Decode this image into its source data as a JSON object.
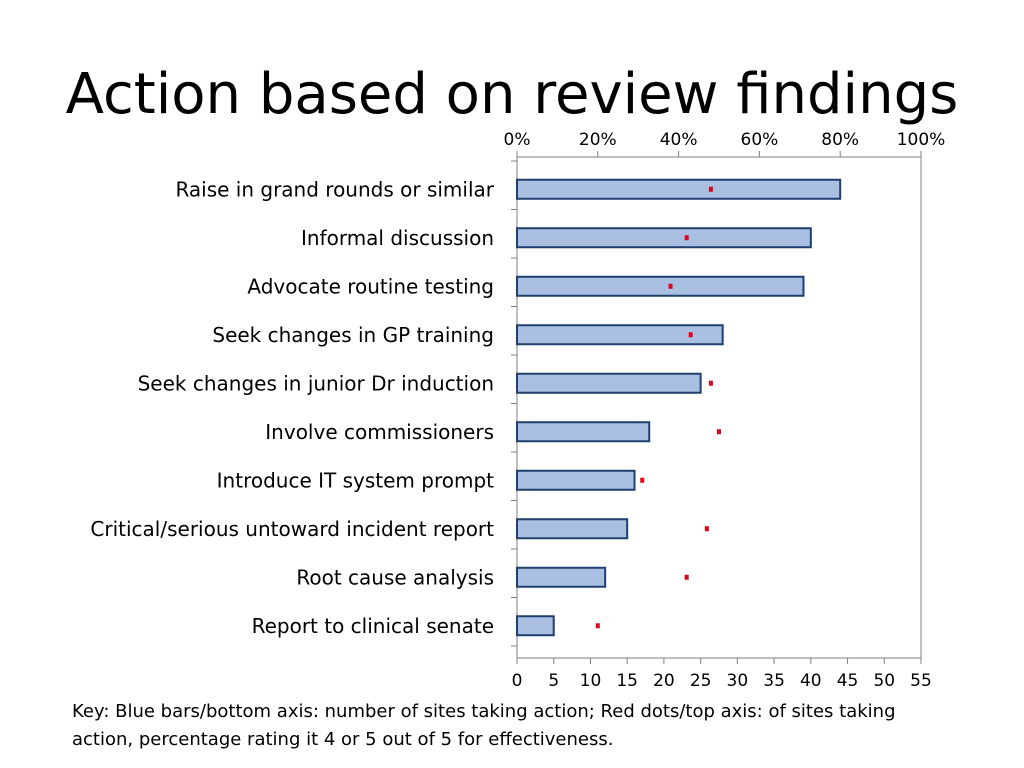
{
  "slide": {
    "title": "Action based on review findings",
    "key": "Key: Blue bars/bottom axis: number of sites taking action; Red dots/top axis: of sites taking action, percentage rating it 4 or 5 out of 5 for effectiveness."
  },
  "colors": {
    "bar_fill": "#a9c0e3",
    "bar_stroke": "#1f3f6e",
    "dot": "#e0001a",
    "axis": "#808080"
  },
  "chart_data": {
    "type": "bar",
    "orientation": "horizontal",
    "categories": [
      "Raise in grand rounds or similar",
      "Informal discussion",
      "Advocate routine testing",
      "Seek changes in GP training",
      "Seek changes in junior Dr induction",
      "Involve commissioners",
      "Introduce IT system prompt",
      "Critical/serious untoward incident report",
      "Root cause analysis",
      "Report to clinical senate"
    ],
    "series": [
      {
        "axis": "bottom",
        "type": "bar",
        "values": [
          44,
          40,
          39,
          28,
          25,
          18,
          16,
          15,
          12,
          5
        ]
      },
      {
        "axis": "top",
        "type": "scatter",
        "values": [
          48,
          42,
          38,
          43,
          48,
          50,
          31,
          47,
          42,
          20
        ]
      }
    ],
    "bottom_axis": {
      "range": [
        0,
        55
      ],
      "ticks": [
        "0",
        "5",
        "10",
        "15",
        "20",
        "25",
        "30",
        "35",
        "40",
        "45",
        "50",
        "55"
      ]
    },
    "top_axis": {
      "range": [
        0,
        100
      ],
      "ticks": [
        "0%",
        "20%",
        "40%",
        "60%",
        "80%",
        "100%"
      ]
    },
    "grid": false,
    "legend": "none"
  }
}
